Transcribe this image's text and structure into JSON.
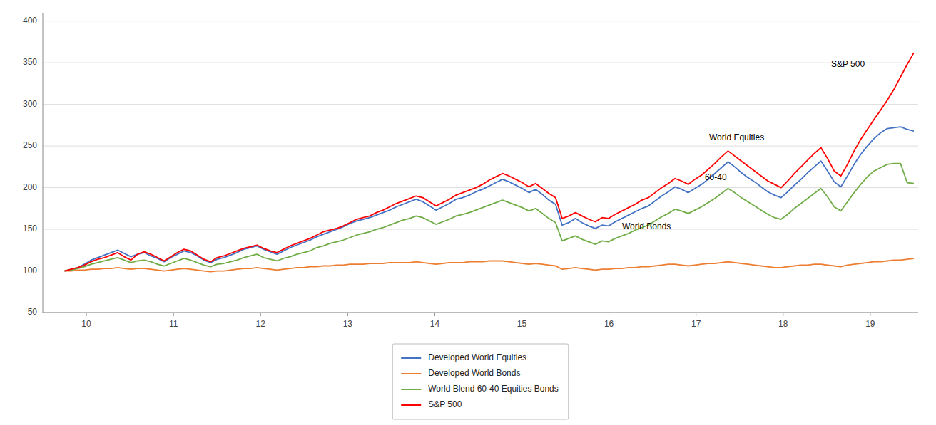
{
  "chart_data": {
    "type": "line",
    "xlim": [
      9.5,
      19.55
    ],
    "ylim": [
      50,
      410
    ],
    "xticks": [
      10,
      11,
      12,
      13,
      14,
      15,
      16,
      17,
      18,
      19
    ],
    "yticks": [
      50,
      100,
      150,
      200,
      250,
      300,
      350,
      400
    ],
    "grid": "y",
    "legend": "bottom",
    "x": [
      9.75,
      9.826171875,
      9.90234375,
      9.978515625,
      10.0546875,
      10.130859375,
      10.20703125,
      10.283203125,
      10.359375,
      10.435546875,
      10.51171875,
      10.587890625,
      10.6640625,
      10.740234375,
      10.81640625,
      10.892578125,
      10.96875,
      11.044921875,
      11.12109375,
      11.197265625,
      11.2734375,
      11.349609375,
      11.42578125,
      11.501953125,
      11.578125,
      11.654296875,
      11.73046875,
      11.806640625,
      11.8828125,
      11.958984375,
      12.03515625,
      12.111328125,
      12.1875,
      12.263671875,
      12.33984375,
      12.416015625,
      12.4921875,
      12.568359375,
      12.64453125,
      12.720703125,
      12.796875,
      12.873046875,
      12.94921875,
      13.025390625,
      13.1015625,
      13.177734375,
      13.25390625,
      13.330078125,
      13.40625,
      13.482421875,
      13.55859375,
      13.634765625,
      13.7109375,
      13.787109375,
      13.86328125,
      13.939453125,
      14.015625,
      14.091796875,
      14.16796875,
      14.244140625,
      14.3203125,
      14.396484375,
      14.47265625,
      14.548828125,
      14.625,
      14.701171875,
      14.77734375,
      14.853515625,
      14.9296875,
      15.005859375,
      15.08203125,
      15.158203125,
      15.234375,
      15.310546875,
      15.38671875,
      15.462890625,
      15.5390625,
      15.615234375,
      15.69140625,
      15.767578125,
      15.84375,
      15.919921875,
      15.99609375,
      16.072265625,
      16.1484375,
      16.224609375,
      16.30078125,
      16.376953125,
      16.453125,
      16.529296875,
      16.60546875,
      16.681640625,
      16.7578125,
      16.833984375,
      16.91015625,
      16.986328125,
      17.0625,
      17.138671875,
      17.21484375,
      17.291015625,
      17.3671875,
      17.443359375,
      17.51953125,
      17.595703125,
      17.671875,
      17.748046875,
      17.82421875,
      17.900390625,
      17.9765625,
      18.052734375,
      18.12890625,
      18.205078125,
      18.28125,
      18.357421875,
      18.43359375,
      18.509765625,
      18.5859375,
      18.662109375,
      18.73828125,
      18.814453125,
      18.890625,
      18.966796875,
      19.04296875,
      19.119140625,
      19.1953125,
      19.271484375,
      19.34765625,
      19.423828125,
      19.5
    ],
    "series": [
      {
        "name": "Developed World Equities",
        "color": "#4472C4",
        "values": [
          100,
          102,
          104,
          108,
          113,
          116,
          119,
          122,
          125,
          121,
          117,
          120,
          122,
          118,
          115,
          111,
          116,
          120,
          124,
          122,
          118,
          113,
          110,
          114,
          116,
          119,
          122,
          126,
          128,
          130,
          126,
          123,
          120,
          124,
          128,
          131,
          134,
          137,
          141,
          144,
          147,
          150,
          153,
          157,
          160,
          162,
          164,
          167,
          170,
          173,
          177,
          180,
          183,
          186,
          183,
          178,
          173,
          177,
          181,
          186,
          188,
          191,
          195,
          198,
          202,
          206,
          210,
          207,
          203,
          199,
          194,
          198,
          192,
          185,
          180,
          155,
          158,
          163,
          158,
          154,
          151,
          155,
          154,
          159,
          163,
          167,
          171,
          175,
          178,
          184,
          190,
          195,
          201,
          198,
          194,
          199,
          204,
          210,
          217,
          224,
          231,
          225,
          218,
          212,
          207,
          201,
          195,
          191,
          188,
          195,
          203,
          210,
          218,
          225,
          232,
          220,
          207,
          201,
          214,
          228,
          240,
          250,
          259,
          266,
          271,
          272,
          273,
          270,
          268
        ]
      },
      {
        "name": "Developed World Bonds",
        "color": "#ED7D31",
        "values": [
          100,
          100,
          101,
          101,
          102,
          102,
          103,
          103,
          104,
          103,
          102,
          103,
          103,
          102,
          101,
          100,
          101,
          102,
          103,
          102,
          101,
          100,
          99,
          100,
          100,
          101,
          102,
          103,
          103,
          104,
          103,
          102,
          101,
          102,
          103,
          104,
          104,
          105,
          105,
          106,
          106,
          107,
          107,
          108,
          108,
          108,
          109,
          109,
          109,
          110,
          110,
          110,
          110,
          111,
          110,
          109,
          108,
          109,
          110,
          110,
          110,
          111,
          111,
          111,
          112,
          112,
          112,
          111,
          110,
          109,
          108,
          109,
          108,
          107,
          106,
          102,
          103,
          104,
          103,
          102,
          101,
          102,
          102,
          103,
          103,
          104,
          104,
          105,
          105,
          106,
          107,
          108,
          108,
          107,
          106,
          107,
          108,
          109,
          109,
          110,
          111,
          110,
          109,
          108,
          107,
          106,
          105,
          104,
          104,
          105,
          106,
          107,
          107,
          108,
          108,
          107,
          106,
          105,
          107,
          108,
          109,
          110,
          111,
          111,
          112,
          113,
          113,
          114,
          115
        ]
      },
      {
        "name": "World Blend 60-40 Equities Bonds",
        "color": "#70AD47",
        "values": [
          100,
          101,
          103,
          105,
          108,
          110,
          112,
          114,
          116,
          113,
          110,
          112,
          113,
          111,
          108,
          106,
          109,
          112,
          115,
          113,
          110,
          107,
          105,
          108,
          109,
          111,
          113,
          116,
          118,
          120,
          116,
          114,
          112,
          115,
          117,
          120,
          122,
          124,
          128,
          130,
          133,
          135,
          137,
          140,
          143,
          145,
          147,
          150,
          152,
          155,
          158,
          161,
          163,
          166,
          164,
          160,
          156,
          159,
          162,
          166,
          168,
          170,
          173,
          176,
          179,
          182,
          185,
          182,
          179,
          176,
          172,
          175,
          169,
          163,
          158,
          136,
          139,
          142,
          138,
          135,
          132,
          136,
          135,
          139,
          142,
          145,
          149,
          152,
          155,
          160,
          165,
          169,
          174,
          172,
          169,
          173,
          177,
          182,
          187,
          193,
          199,
          194,
          188,
          183,
          178,
          173,
          168,
          164,
          162,
          168,
          175,
          181,
          187,
          193,
          199,
          189,
          177,
          172,
          183,
          194,
          204,
          213,
          220,
          224,
          228,
          229,
          229,
          206,
          205
        ]
      },
      {
        "name": "S&P 500",
        "color": "#FF0000",
        "values": [
          100,
          102,
          104,
          107,
          111,
          114,
          116,
          119,
          122,
          117,
          113,
          120,
          123,
          120,
          116,
          112,
          117,
          122,
          126,
          124,
          119,
          114,
          111,
          116,
          118,
          121,
          124,
          127,
          129,
          131,
          127,
          124,
          122,
          126,
          130,
          133,
          136,
          139,
          143,
          147,
          149,
          151,
          154,
          158,
          162,
          164,
          166,
          170,
          173,
          177,
          181,
          184,
          187,
          190,
          188,
          183,
          178,
          182,
          186,
          191,
          194,
          197,
          200,
          204,
          209,
          213,
          217,
          214,
          210,
          206,
          201,
          205,
          199,
          193,
          188,
          163,
          166,
          170,
          166,
          162,
          159,
          164,
          163,
          168,
          172,
          176,
          180,
          185,
          188,
          194,
          200,
          205,
          211,
          208,
          204,
          210,
          215,
          222,
          229,
          237,
          244,
          238,
          232,
          226,
          220,
          214,
          208,
          204,
          200,
          208,
          217,
          225,
          233,
          241,
          248,
          235,
          220,
          214,
          228,
          244,
          258,
          270,
          282,
          293,
          305,
          318,
          333,
          348,
          362
        ]
      }
    ],
    "annotations": [
      {
        "text": "S&P 500",
        "x": 18.55,
        "y": 348
      },
      {
        "text": "World Equities",
        "x": 17.15,
        "y": 260
      },
      {
        "text": "60-40",
        "x": 17.1,
        "y": 212
      },
      {
        "text": "World Bonds",
        "x": 16.15,
        "y": 153
      }
    ]
  }
}
